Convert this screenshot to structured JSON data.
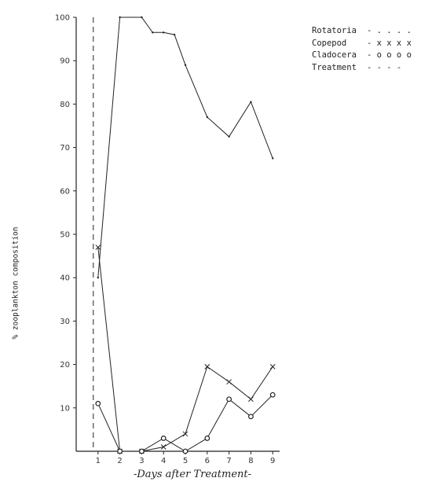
{
  "chart_data": {
    "type": "line",
    "title": "",
    "xlabel": "-Days after Treatment-",
    "ylabel": "% zooplankton composition",
    "xlim": [
      0,
      9
    ],
    "ylim": [
      0,
      100
    ],
    "x_ticks": [
      "1",
      "2",
      "3",
      "4",
      "5",
      "6",
      "7",
      "8",
      "9"
    ],
    "y_ticks": [
      "10",
      "20",
      "30",
      "40",
      "50",
      "60",
      "70",
      "80",
      "90",
      "100"
    ],
    "treatment_x": 1,
    "series": [
      {
        "name": "Rotatoria",
        "marker": "dot",
        "x": [
          1,
          2,
          3,
          3.5,
          4,
          4.5,
          5,
          6,
          7,
          8,
          9
        ],
        "y": [
          40,
          100,
          100,
          96.5,
          96.5,
          96,
          89,
          77,
          72.5,
          80.5,
          67.5
        ]
      },
      {
        "name": "Copepod",
        "marker": "x",
        "x": [
          1,
          2,
          3,
          4,
          5,
          6,
          7,
          8,
          9
        ],
        "y": [
          47,
          0,
          0,
          1,
          4,
          19.5,
          16,
          12,
          19.5
        ]
      },
      {
        "name": "Cladocera",
        "marker": "o",
        "x": [
          1,
          2,
          3,
          4,
          5,
          6,
          7,
          8,
          9
        ],
        "y": [
          11,
          0,
          0,
          3,
          0,
          3,
          12,
          8,
          13
        ]
      }
    ],
    "grid": false,
    "legend_position": "top-right"
  },
  "legend": [
    {
      "name": "Rotatoria",
      "symbol": "- . . . ."
    },
    {
      "name": "Copepod",
      "symbol": "- x x x x"
    },
    {
      "name": "Cladocera",
      "symbol": "- o o o o"
    },
    {
      "name": "Treatment",
      "symbol": "- - - -"
    }
  ]
}
